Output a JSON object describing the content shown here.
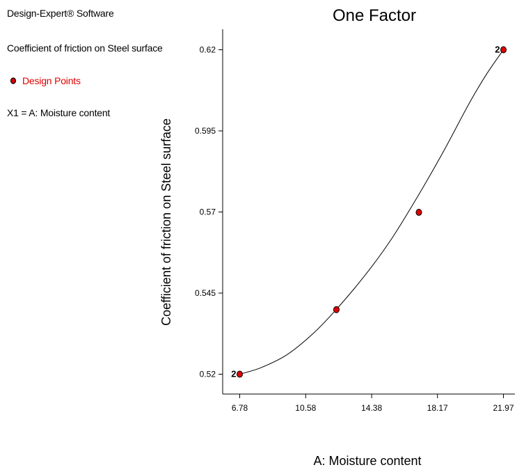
{
  "sidebar": {
    "software": "Design-Expert® Software",
    "response": "Coefficient of friction on Steel surface",
    "design_points": "Design Points",
    "factor": "X1 = A: Moisture content"
  },
  "colors": {
    "point_fill": "#e00000",
    "axes": "#000000",
    "text_red": "#e00000"
  },
  "chart_data": {
    "type": "line",
    "title": "One Factor",
    "xlabel": "A: Moisture content",
    "ylabel": "Coefficient of friction on Steel surface",
    "xlim": [
      6.78,
      21.97
    ],
    "ylim": [
      0.52,
      0.62
    ],
    "x_ticks": [
      "6.78",
      "10.58",
      "14.38",
      "18.17",
      "21.97"
    ],
    "y_ticks": [
      "0.52",
      "0.545",
      "0.57",
      "0.595",
      "0.62"
    ],
    "series": [
      {
        "kind": "fitted-curve",
        "x": [
          6.78,
          8.0,
          9.5,
          11.0,
          12.35,
          14.0,
          15.5,
          17.0,
          18.5,
          20.0,
          21.0,
          21.97
        ],
        "y": [
          0.52,
          0.522,
          0.526,
          0.5325,
          0.54,
          0.5505,
          0.5615,
          0.5745,
          0.5885,
          0.6035,
          0.6125,
          0.62
        ]
      },
      {
        "kind": "design-points",
        "x": [
          6.78,
          12.35,
          17.1,
          21.97
        ],
        "y": [
          0.52,
          0.5399,
          0.5699,
          0.62
        ],
        "replicates": [
          "2",
          "",
          "",
          "2"
        ]
      }
    ]
  }
}
